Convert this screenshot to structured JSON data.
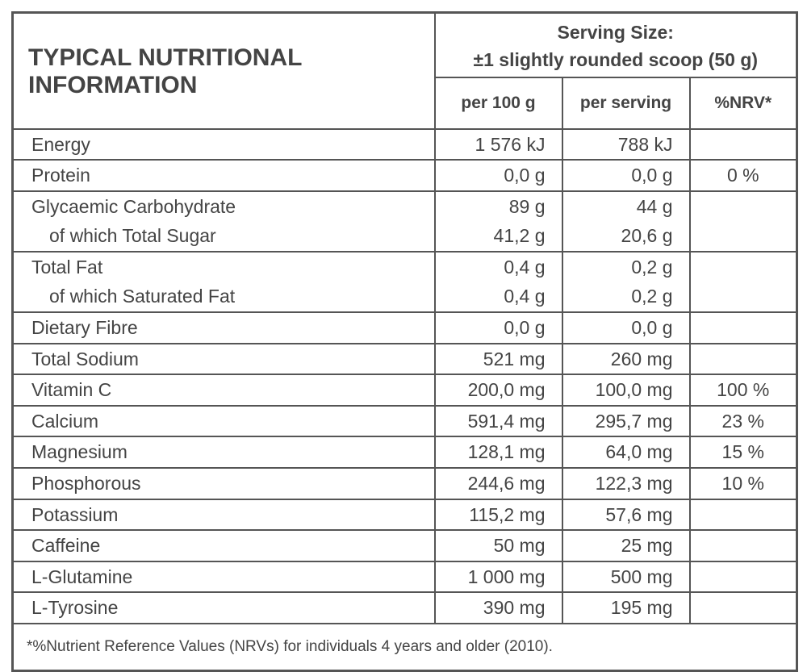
{
  "header": {
    "title": "TYPICAL NUTRITIONAL INFORMATION",
    "serving_size": [
      "Serving Size:",
      "±1 slightly rounded scoop (50 g)"
    ],
    "columns": [
      "per 100 g",
      "per serving",
      "%NRV*"
    ]
  },
  "table": {
    "rows": [
      [
        [
          "Energy",
          "1 576 kJ",
          "788 kJ"
        ]
      ],
      [
        [
          "Protein",
          "0,0 g",
          "0,0 g",
          "0 %"
        ]
      ],
      [
        [
          "Glycaemic Carbohydrate",
          "89 g",
          "44 g"
        ],
        [
          "of which Total Sugar",
          "41,2 g",
          "20,6 g"
        ]
      ],
      [
        [
          "Total Fat",
          "0,4 g",
          "0,2 g"
        ],
        [
          "of which Saturated Fat",
          "0,4 g",
          "0,2 g"
        ]
      ],
      [
        [
          "Dietary Fibre",
          "0,0 g",
          "0,0 g"
        ]
      ],
      [
        [
          "Total Sodium",
          "521 mg",
          "260 mg"
        ]
      ],
      [
        [
          "Vitamin C",
          "200,0 mg",
          "100,0 mg",
          "100 %"
        ]
      ],
      [
        [
          "Calcium",
          "591,4 mg",
          "295,7 mg",
          "23 %"
        ]
      ],
      [
        [
          "Magnesium",
          "128,1 mg",
          "64,0 mg",
          "15 %"
        ]
      ],
      [
        [
          "Phosphorous",
          "244,6 mg",
          "122,3 mg",
          "10 %"
        ]
      ],
      [
        [
          "Potassium",
          "115,2 mg",
          "57,6 mg"
        ]
      ],
      [
        [
          "Caffeine",
          "50 mg",
          "25 mg"
        ]
      ],
      [
        [
          "L-Glutamine",
          "1 000 mg",
          "500 mg"
        ]
      ],
      [
        [
          "L-Tyrosine",
          "390 mg",
          "195 mg"
        ]
      ]
    ]
  },
  "footnote": "*%Nutrient Reference Values (NRVs) for individuals 4 years and older (2010)."
}
